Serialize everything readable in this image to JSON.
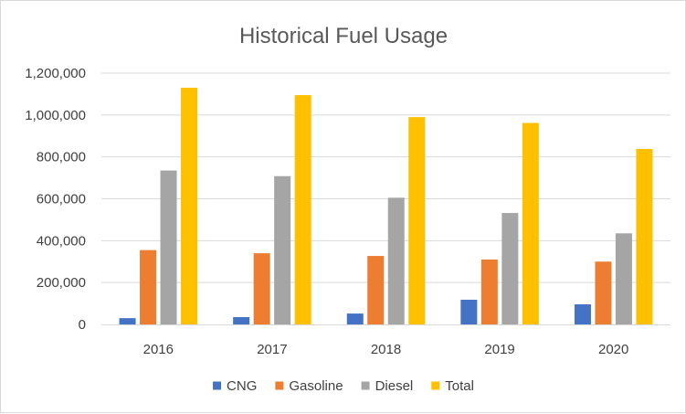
{
  "chart_data": {
    "type": "bar",
    "title": "Historical Fuel Usage",
    "xlabel": "",
    "ylabel": "",
    "categories": [
      "2016",
      "2017",
      "2018",
      "2019",
      "2020"
    ],
    "series": [
      {
        "name": "CNG",
        "color": "#4472C4",
        "values": [
          30000,
          35000,
          52000,
          118000,
          96000
        ]
      },
      {
        "name": "Gasoline",
        "color": "#ED7D31",
        "values": [
          355000,
          340000,
          327000,
          310000,
          300000
        ]
      },
      {
        "name": "Diesel",
        "color": "#A5A5A5",
        "values": [
          735000,
          708000,
          605000,
          532000,
          435000
        ]
      },
      {
        "name": "Total",
        "color": "#FFC000",
        "values": [
          1130000,
          1095000,
          990000,
          962000,
          838000
        ]
      }
    ],
    "ylim": [
      0,
      1200000
    ],
    "yticks": [
      "0",
      "200,000",
      "400,000",
      "600,000",
      "800,000",
      "1,000,000",
      "1,200,000"
    ],
    "grid": true,
    "legend": "bottom"
  }
}
